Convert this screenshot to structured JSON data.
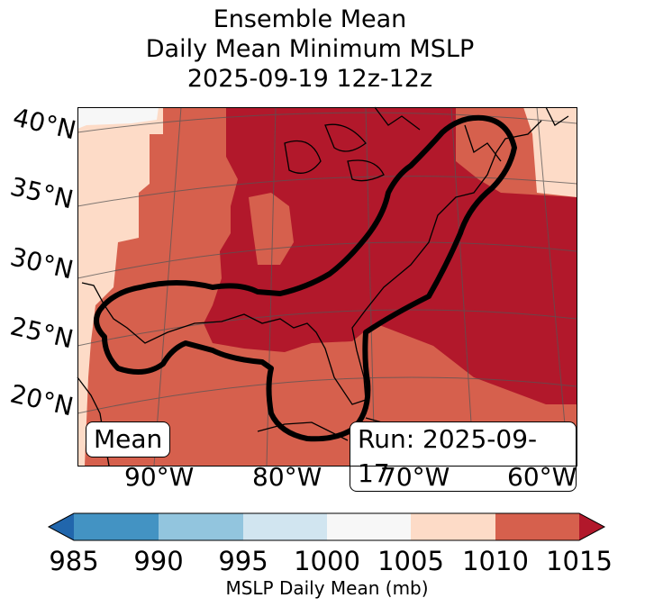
{
  "title": {
    "line1": "Ensemble Mean",
    "line2": "Daily Mean Minimum MSLP",
    "line3": "2025-09-19 12z-12z"
  },
  "map": {
    "lat_labels": [
      "40°N",
      "35°N",
      "30°N",
      "25°N",
      "20°N"
    ],
    "lon_labels": [
      "90°W",
      "80°W",
      "70°W",
      "60°W"
    ],
    "mean_box": "Mean",
    "run_box": "Run: 2025-09-17"
  },
  "colorbar": {
    "ticks": [
      "985",
      "990",
      "995",
      "1000",
      "1005",
      "1010",
      "1015"
    ],
    "label": "MSLP Daily Mean (mb)",
    "colors": {
      "under": "#2166ac",
      "985_990": "#4393c3",
      "990_995": "#92c5de",
      "995_1000": "#d1e5f0",
      "1000_1005": "#f7f7f7",
      "1005_1010": "#fddbc7",
      "1010_1015": "#d6604d",
      "over": "#b2182b"
    }
  }
}
